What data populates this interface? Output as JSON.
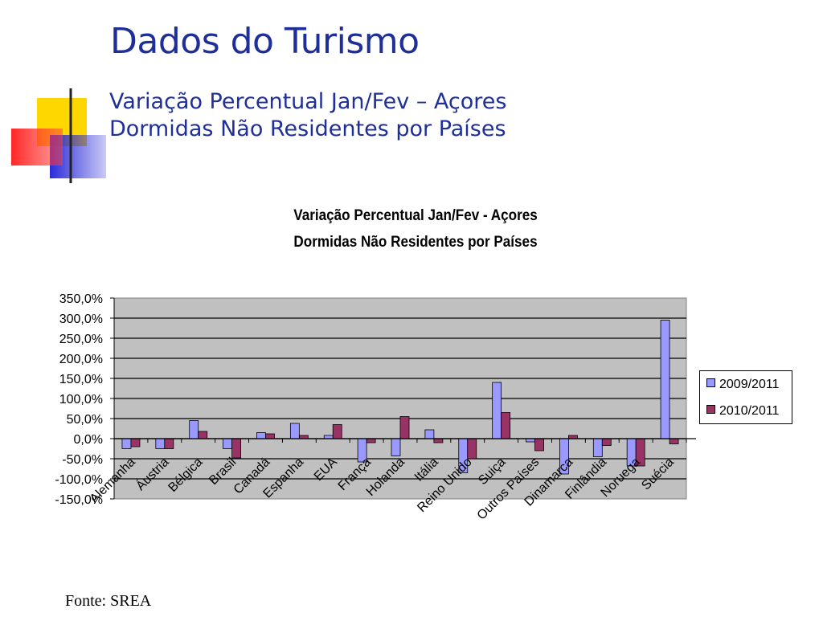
{
  "slide": {
    "title": "Dados do Turismo",
    "subtitle_line1": "Variação Percentual Jan/Fev – Açores",
    "subtitle_line2": "Dormidas Não Residentes por Países",
    "source": "Fonte: SREA"
  },
  "colors": {
    "title": "#1f2f99",
    "plot_background": "#c0c0c0",
    "series_2009": "#9999ff",
    "series_2010": "#993366",
    "deco_yellow": "#ffd700",
    "deco_red": "#ff2020",
    "deco_blue": "#3333dd"
  },
  "chart_data": {
    "type": "bar",
    "title_line1": "Variação Percentual Jan/Fev - Açores",
    "title_line2": "Dormidas Não Residentes por Países",
    "xlabel": "",
    "ylabel": "",
    "ylim": [
      -150,
      350
    ],
    "ytick_step": 50,
    "ytick_labels": [
      "350,0%",
      "300,0%",
      "250,0%",
      "200,0%",
      "150,0%",
      "100,0%",
      "50,0%",
      "0,0%",
      "-50,0%",
      "-100,0%",
      "-150,0%"
    ],
    "grid": true,
    "legend_position": "right",
    "categories": [
      "Alemanha",
      "Áustria",
      "Bélgica",
      "Brasil",
      "Canadá",
      "Espanha",
      "EUA",
      "França",
      "Holanda",
      "Itália",
      "Reino Unido",
      "Suiça",
      "Outros Países",
      "Dinamarca",
      "Finlândia",
      "Noruega",
      "Suécia"
    ],
    "series": [
      {
        "name": "2009/2011",
        "color": "#9999ff",
        "values": [
          -25,
          -25,
          45,
          -25,
          15,
          38,
          8,
          -58,
          -43,
          22,
          -85,
          140,
          -8,
          -88,
          -45,
          -68,
          295
        ]
      },
      {
        "name": "2010/2011",
        "color": "#993366",
        "values": [
          -20,
          -25,
          18,
          -48,
          12,
          8,
          35,
          -10,
          55,
          -10,
          -50,
          65,
          -30,
          8,
          -17,
          -68,
          -13
        ]
      }
    ]
  }
}
